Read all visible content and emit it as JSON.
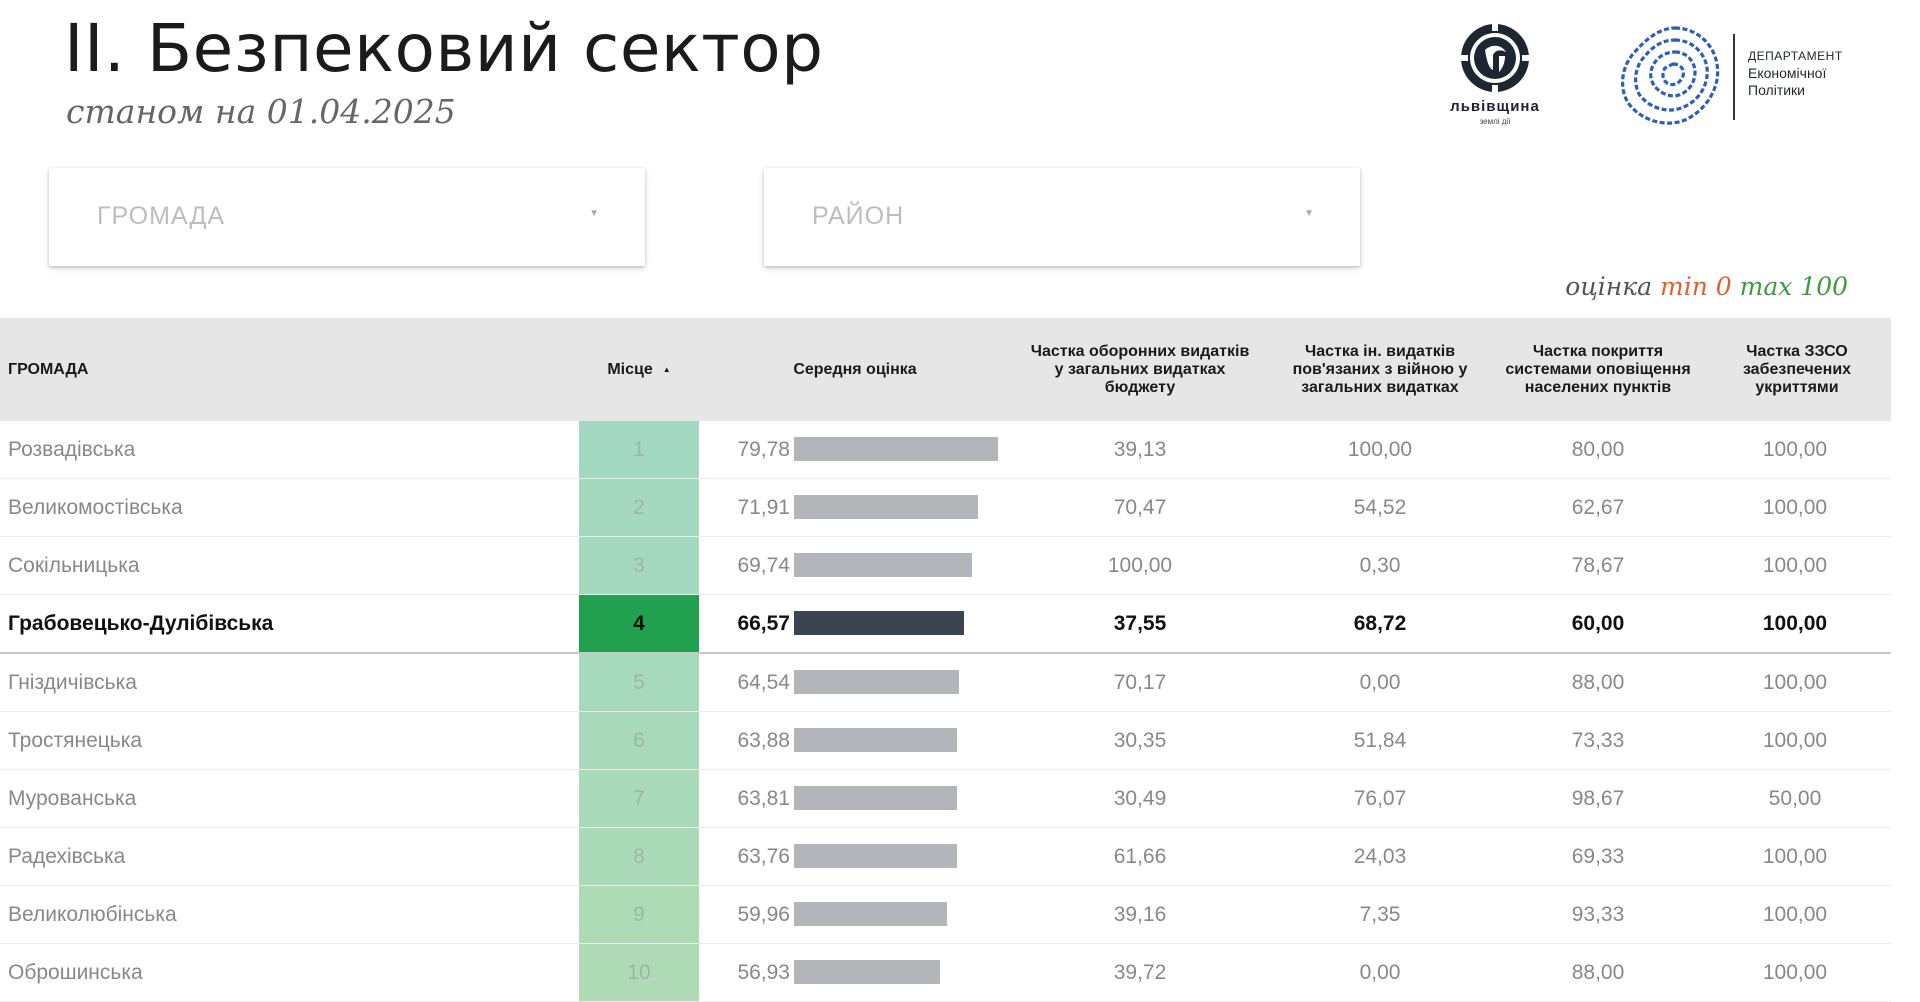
{
  "header": {
    "title": "II. Безпековий сектор",
    "subtitle": "станом на 01.04.2025"
  },
  "logos": {
    "region_logo_name": "львівщина",
    "region_logo_tag": "землі дії",
    "department_line1": "ДЕПАРТАМЕНТ",
    "department_line2": "Економічної",
    "department_line3": "Політики"
  },
  "filters": {
    "hromada_placeholder": "ГРОМАДА",
    "raion_placeholder": "РАЙОН"
  },
  "legend": {
    "label": "оцінка",
    "min_text": "min 0",
    "max_text": "max 100",
    "min_color": "#e2602f",
    "max_color": "#3d9a3f"
  },
  "table": {
    "headers": {
      "name": "ГРОМАДА",
      "rank": "Місце",
      "sort_indicator": "▲",
      "average": "Середня оцінка",
      "col1": "Частка оборонних видатків у загальних видатках бюджету",
      "col2": "Частка ін. видатків пов'язаних з війною у загальних видатках",
      "col3": "Частка покриття системами оповіщення населених пунктів",
      "col4": "Частка ЗЗСО забезпечених укриттями"
    },
    "rows": [
      {
        "name": "Розвадівська",
        "rank": "1",
        "average": "79,78",
        "average_value": 79.78,
        "c1": "39,13",
        "c2": "100,00",
        "c3": "80,00",
        "c4": "100,00",
        "rank_color": "#a3d9c2",
        "highlight": false
      },
      {
        "name": "Великомостівська",
        "rank": "2",
        "average": "71,91",
        "average_value": 71.91,
        "c1": "70,47",
        "c2": "54,52",
        "c3": "62,67",
        "c4": "100,00",
        "rank_color": "#a4d9c0",
        "highlight": false
      },
      {
        "name": "Сокільницька",
        "rank": "3",
        "average": "69,74",
        "average_value": 69.74,
        "c1": "100,00",
        "c2": "0,30",
        "c3": "78,67",
        "c4": "100,00",
        "rank_color": "#a5d9bf",
        "highlight": false
      },
      {
        "name": "Грабовецько-Дулібівська",
        "rank": "4",
        "average": "66,57",
        "average_value": 66.57,
        "c1": "37,55",
        "c2": "68,72",
        "c3": "60,00",
        "c4": "100,00",
        "rank_color": "#21a04f",
        "highlight": true
      },
      {
        "name": "Гніздичівська",
        "rank": "5",
        "average": "64,54",
        "average_value": 64.54,
        "c1": "70,17",
        "c2": "0,00",
        "c3": "88,00",
        "c4": "100,00",
        "rank_color": "#a7d9bc",
        "highlight": false
      },
      {
        "name": "Тростянецька",
        "rank": "6",
        "average": "63,88",
        "average_value": 63.88,
        "c1": "30,35",
        "c2": "51,84",
        "c3": "73,33",
        "c4": "100,00",
        "rank_color": "#a8d9bb",
        "highlight": false
      },
      {
        "name": "Мурованська",
        "rank": "7",
        "average": "63,81",
        "average_value": 63.81,
        "c1": "30,49",
        "c2": "76,07",
        "c3": "98,67",
        "c4": "50,00",
        "rank_color": "#a9dab9",
        "highlight": false
      },
      {
        "name": "Радехівська",
        "rank": "8",
        "average": "63,76",
        "average_value": 63.76,
        "c1": "61,66",
        "c2": "24,03",
        "c3": "69,33",
        "c4": "100,00",
        "rank_color": "#abdab8",
        "highlight": false
      },
      {
        "name": "Великолюбінська",
        "rank": "9",
        "average": "59,96",
        "average_value": 59.96,
        "c1": "39,16",
        "c2": "7,35",
        "c3": "93,33",
        "c4": "100,00",
        "rank_color": "#acdbb6",
        "highlight": false
      },
      {
        "name": "Оброшинська",
        "rank": "10",
        "average": "56,93",
        "average_value": 56.93,
        "c1": "39,72",
        "c2": "0,00",
        "c3": "88,00",
        "c4": "100,00",
        "rank_color": "#aedbb5",
        "highlight": false
      }
    ]
  }
}
